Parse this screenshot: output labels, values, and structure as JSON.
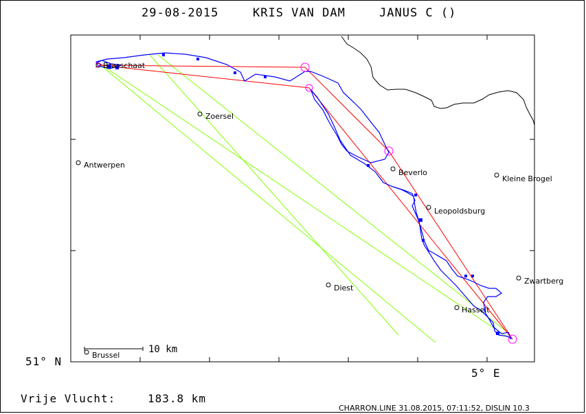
{
  "header": {
    "date": "29-08-2015",
    "pilot": "KRIS VAN DAM",
    "glider": "JANUS C ()"
  },
  "axes": {
    "lat_label": "51° N",
    "lon_label": "5° E"
  },
  "scale_bar": {
    "label": "10 km"
  },
  "towns": [
    {
      "name": "Brasschaat"
    },
    {
      "name": "Zoersel"
    },
    {
      "name": "Antwerpen"
    },
    {
      "name": "Beverlo"
    },
    {
      "name": "Kleine Brogel"
    },
    {
      "name": "Leopoldsburg"
    },
    {
      "name": "Diest"
    },
    {
      "name": "Zwartberg"
    },
    {
      "name": "Hasselt"
    },
    {
      "name": "Brussel"
    }
  ],
  "footer": {
    "distance_label": "Vrije Vlucht:",
    "distance_value": "183.8 km",
    "credit": "CHARRON.LINE 31.08.2015, 07:11:52, DISLIN 10.3"
  },
  "colors": {
    "track": "#0000ff",
    "task": "#ff0000",
    "straight": "#80ff00",
    "turnpoint": "#ff00ff",
    "border": "#000000"
  }
}
